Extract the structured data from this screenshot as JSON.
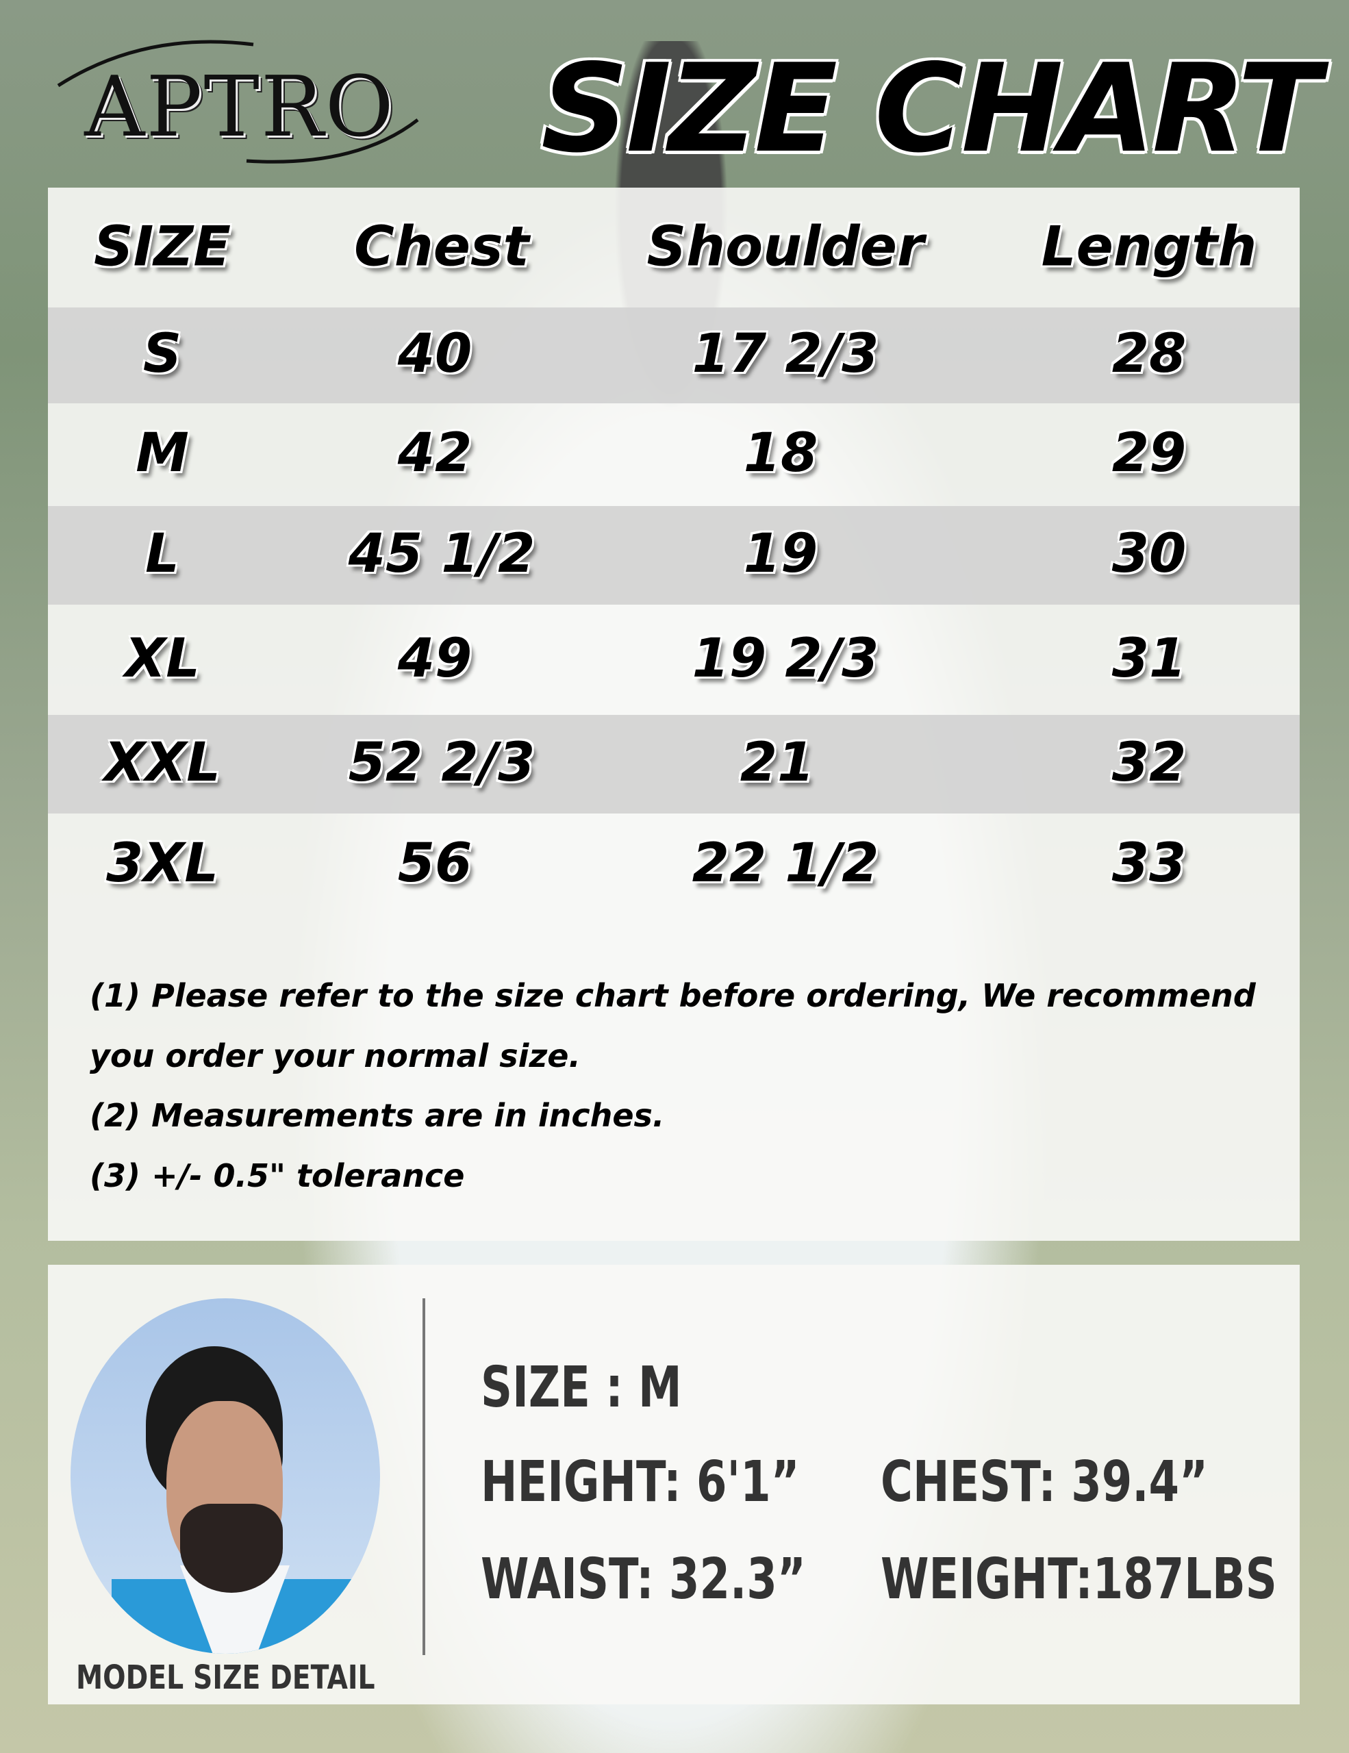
{
  "brand": {
    "logo_text": "APTRO"
  },
  "title": "SIZE CHART",
  "table": {
    "headers": [
      "SIZE",
      "Chest",
      "Shoulder",
      "Length"
    ],
    "rows": [
      [
        "S",
        "40",
        "17 2/3",
        "28"
      ],
      [
        "M",
        "42",
        "18",
        "29"
      ],
      [
        "L",
        "45 1/2",
        "19",
        "30"
      ],
      [
        "XL",
        "49",
        "19 2/3",
        "31"
      ],
      [
        "XXL",
        "52 2/3",
        "21",
        "32"
      ],
      [
        "3XL",
        "56",
        "22 1/2",
        "33"
      ]
    ]
  },
  "notes": [
    "(1) Please refer to the size chart before ordering, We recommend",
    "you order your normal size.",
    "(2) Measurements are in inches.",
    "(3) +/- 0.5\" tolerance"
  ],
  "model": {
    "label": "MODEL SIZE DETAIL",
    "size": "SIZE : M",
    "height": "HEIGHT: 6'1”",
    "chest": "CHEST: 39.4”",
    "waist": "WAIST: 32.3”",
    "weight": "WEIGHT:187LBS"
  }
}
